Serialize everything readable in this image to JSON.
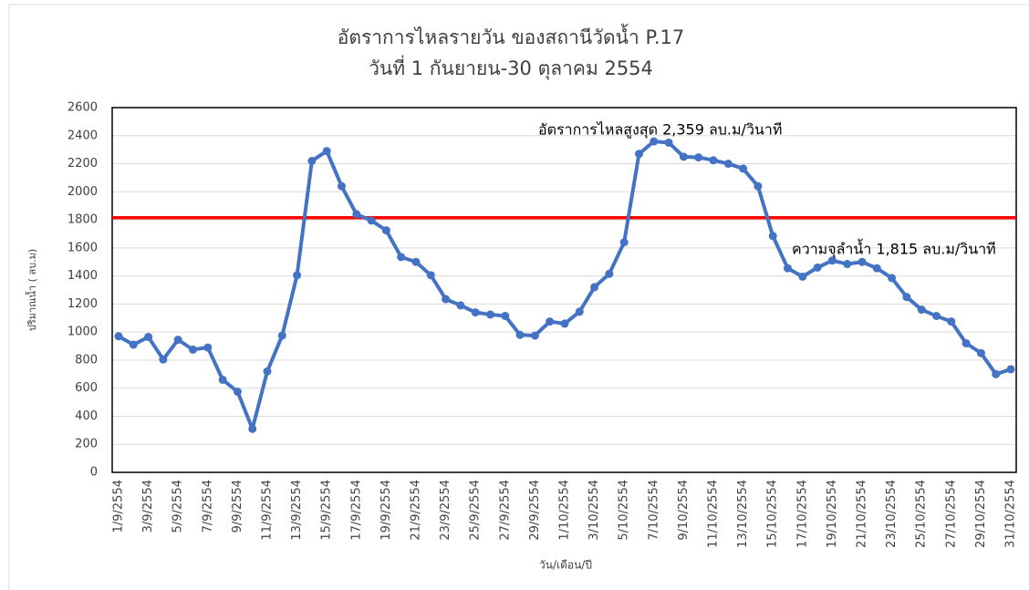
{
  "chart_data": {
    "type": "line",
    "title": "อัตราการไหลรายวัน ของสถานีวัดน้ำ P.17",
    "subtitle": "วันที่ 1 กันยายน-30 ตุลาคม 2554",
    "y_label": "ปริมาณน้ำ ( ลบ.ม)",
    "x_label": "วัน/เดือน/ปี",
    "categories": [
      "1/9/2554",
      null,
      "3/9/2554",
      null,
      "5/9/2554",
      null,
      "7/9/2554",
      null,
      "9/9/2554",
      null,
      "11/9/2554",
      null,
      "13/9/2554",
      null,
      "15/9/2554",
      null,
      "17/9/2554",
      null,
      "19/9/2554",
      null,
      "21/9/2554",
      null,
      "23/9/2554",
      null,
      "25/9/2554",
      null,
      "27/9/2554",
      null,
      "29/9/2554",
      null,
      "1/10/2554",
      null,
      "3/10/2554",
      null,
      "5/10/2554",
      null,
      "7/10/2554",
      null,
      "9/10/2554",
      null,
      "11/10/2554",
      null,
      "13/10/2554",
      null,
      "15/10/2554",
      null,
      "17/10/2554",
      null,
      "19/10/2554",
      null,
      "21/10/2554",
      null,
      "23/10/2554",
      null,
      "25/10/2554",
      null,
      "27/10/2554",
      null,
      "29/10/2554",
      null,
      "31/10/2554"
    ],
    "series": [
      {
        "name": "อัตราการไหล",
        "color": "#4472c4",
        "values": [
          970,
          910,
          965,
          805,
          945,
          875,
          890,
          660,
          575,
          310,
          720,
          975,
          1405,
          2220,
          2290,
          2040,
          1840,
          1795,
          1725,
          1535,
          1500,
          1405,
          1235,
          1190,
          1140,
          1125,
          1115,
          980,
          975,
          1075,
          1060,
          1145,
          1320,
          1415,
          1640,
          2270,
          2359,
          2350,
          2250,
          2245,
          2225,
          2200,
          2165,
          2040,
          1685,
          1455,
          1395,
          1460,
          1510,
          1485,
          1500,
          1455,
          1385,
          1250,
          1160,
          1115,
          1075,
          920,
          850,
          700,
          735
        ]
      }
    ],
    "reference_line": {
      "value": 1815,
      "color": "#ff0000"
    },
    "annotations": [
      "อัตราการไหลสูงสุด 2,359 ลบ.ม/วินาที",
      "ความจุลำน้ำ 1,815 ลบ.ม/วินาที"
    ],
    "ylim": [
      0,
      2600
    ],
    "yticks": [
      0,
      200,
      400,
      600,
      800,
      1000,
      1200,
      1400,
      1600,
      1800,
      2000,
      2200,
      2400,
      2600
    ],
    "grid": true
  }
}
